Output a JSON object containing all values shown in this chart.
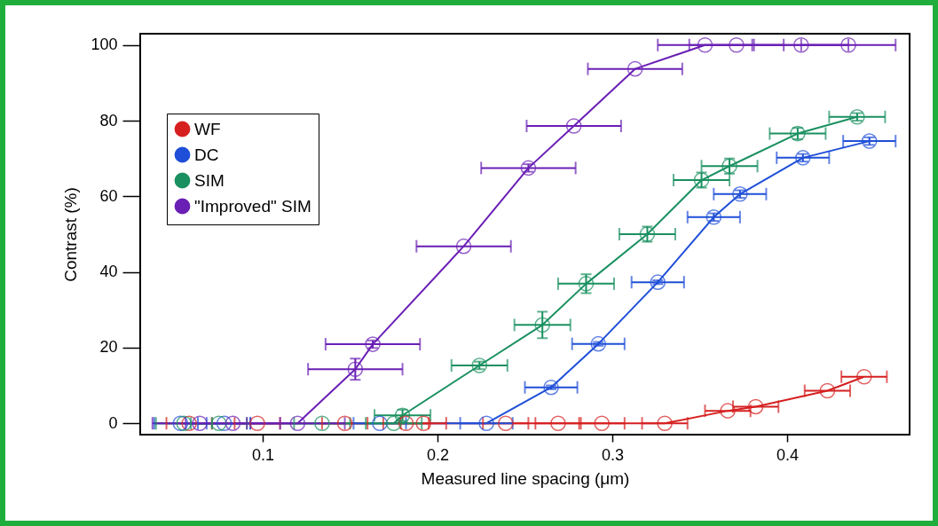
{
  "chart_data": {
    "type": "line",
    "xlabel": "Measured line spacing (μm)",
    "ylabel": "Contrast (%)",
    "xlim": [
      0.03,
      0.47
    ],
    "xticks": [
      0.1,
      0.2,
      0.3,
      0.4
    ],
    "ylim": [
      -3,
      103
    ],
    "yticks": [
      0,
      20,
      40,
      60,
      80,
      100
    ],
    "marker": "circle",
    "legend": "top left",
    "series": [
      {
        "name": "WF",
        "color": "#d62020",
        "x": [
          0.058,
          0.097,
          0.147,
          0.182,
          0.192,
          0.239,
          0.269,
          0.294,
          0.33,
          0.366,
          0.382,
          0.423,
          0.444
        ],
        "values": [
          0,
          0,
          0,
          0,
          0,
          0,
          0,
          0,
          0,
          3.3,
          4.4,
          8.6,
          12.3
        ],
        "xerrors": [
          0.013,
          0.013,
          0.013,
          0.013,
          0.013,
          0.013,
          0.013,
          0.013,
          0.013,
          0.013,
          0.013,
          0.013,
          0.013
        ]
      },
      {
        "name": "DC",
        "color": "#1f4fd8",
        "x": [
          0.053,
          0.078,
          0.167,
          0.228,
          0.265,
          0.292,
          0.326,
          0.358,
          0.373,
          0.409,
          0.447
        ],
        "values": [
          0,
          0,
          0,
          0,
          9.5,
          21,
          37.3,
          54.5,
          60.6,
          70.2,
          74.6
        ],
        "errors": [
          null,
          null,
          null,
          null,
          0.5,
          0.5,
          0.5,
          1,
          1,
          1,
          1
        ],
        "xerrors": [
          0.015,
          0.015,
          0.015,
          0.015,
          0.015,
          0.015,
          0.015,
          0.015,
          0.015,
          0.015,
          0.015
        ]
      },
      {
        "name": "SIM",
        "color": "#1a9060",
        "x": [
          0.055,
          0.075,
          0.134,
          0.175,
          0.18,
          0.224,
          0.26,
          0.285,
          0.32,
          0.351,
          0.367,
          0.406,
          0.44
        ],
        "values": [
          0,
          0,
          0,
          0,
          2.1,
          15.3,
          26,
          36.9,
          50,
          64.3,
          68,
          76.6,
          81
        ],
        "errors": [
          null,
          null,
          null,
          null,
          1.5,
          1,
          3.5,
          2.5,
          2,
          2,
          2,
          1.5,
          1
        ],
        "xerrors": [
          0.016,
          0.016,
          0.016,
          0.016,
          0.016,
          0.016,
          0.016,
          0.016,
          0.016,
          0.016,
          0.016,
          0.016,
          0.016
        ]
      },
      {
        "name": "\"Improved\" SIM",
        "color": "#6a1fb5",
        "x": [
          0.064,
          0.083,
          0.12,
          0.153,
          0.163,
          0.215,
          0.252,
          0.278,
          0.313,
          0.353,
          0.371,
          0.408,
          0.435
        ],
        "values": [
          0,
          0,
          0,
          14.3,
          20.9,
          46.8,
          67.5,
          78.6,
          93.7,
          100,
          100,
          100,
          100
        ],
        "errors": [
          null,
          null,
          null,
          2.8,
          1,
          null,
          1,
          null,
          null,
          null,
          null,
          null,
          null
        ],
        "xerrors": [
          0.027,
          0.027,
          0.027,
          0.027,
          0.027,
          0.027,
          0.027,
          0.027,
          0.027,
          0.027,
          0.027,
          0.027,
          0.027
        ]
      }
    ]
  }
}
